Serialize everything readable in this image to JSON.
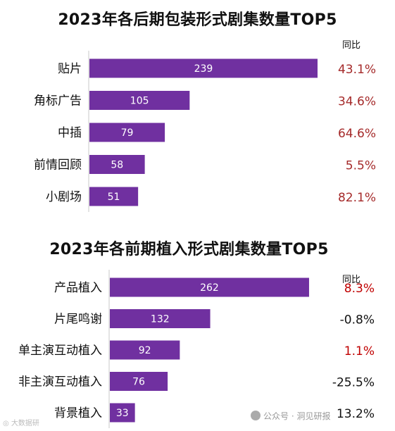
{
  "chart_data": [
    {
      "type": "bar",
      "orientation": "horizontal",
      "title": "2023年各后期包装形式剧集数量TOP5",
      "yoy_header": "同比",
      "categories": [
        "贴片",
        "角标广告",
        "中插",
        "前情回顾",
        "小剧场"
      ],
      "values": [
        239,
        105,
        79,
        58,
        51
      ],
      "yoy": [
        "43.1%",
        "34.6%",
        "64.6%",
        "5.5%",
        "82.1%"
      ],
      "xlim": [
        0,
        270
      ],
      "bar_color": "#7030a0",
      "yoy_color": "#a52a2a"
    },
    {
      "type": "bar",
      "orientation": "horizontal",
      "title": "2023年各前期植入形式剧集数量TOP5",
      "yoy_header": "同比",
      "categories": [
        "产品植入",
        "片尾鸣谢",
        "单主演互动植入",
        "非主演互动植入",
        "背景植入"
      ],
      "values": [
        262,
        132,
        92,
        76,
        33
      ],
      "yoy": [
        "8.3%",
        "-0.8%",
        "1.1%",
        "-25.5%",
        "13.2%"
      ],
      "yoy_colors": [
        "#c00000",
        "#111111",
        "#c00000",
        "#111111",
        "#111111"
      ],
      "xlim": [
        0,
        300
      ],
      "bar_color": "#7030a0"
    }
  ],
  "watermark": {
    "left": "◎ 大数据研",
    "right": "公众号 · 洞见研报"
  }
}
